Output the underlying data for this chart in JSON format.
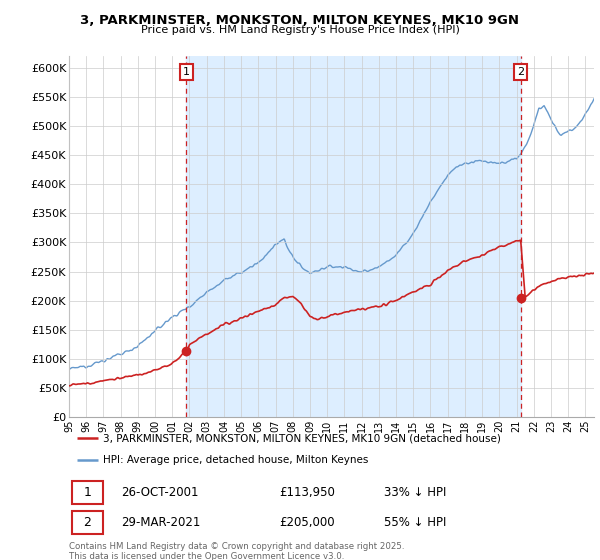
{
  "title_line1": "3, PARKMINSTER, MONKSTON, MILTON KEYNES, MK10 9GN",
  "title_line2": "Price paid vs. HM Land Registry's House Price Index (HPI)",
  "ylim": [
    0,
    620000
  ],
  "yticks": [
    0,
    50000,
    100000,
    150000,
    200000,
    250000,
    300000,
    350000,
    400000,
    450000,
    500000,
    550000,
    600000
  ],
  "ytick_labels": [
    "£0",
    "£50K",
    "£100K",
    "£150K",
    "£200K",
    "£250K",
    "£300K",
    "£350K",
    "£400K",
    "£450K",
    "£500K",
    "£550K",
    "£600K"
  ],
  "sale1_date": 2001.82,
  "sale1_price": 113950,
  "sale1_label": "1",
  "sale2_date": 2021.24,
  "sale2_price": 205000,
  "sale2_label": "2",
  "property_color": "#cc2222",
  "hpi_color": "#6699cc",
  "hpi_fill_color": "#ddeeff",
  "legend_property": "3, PARKMINSTER, MONKSTON, MILTON KEYNES, MK10 9GN (detached house)",
  "legend_hpi": "HPI: Average price, detached house, Milton Keynes",
  "footnote": "Contains HM Land Registry data © Crown copyright and database right 2025.\nThis data is licensed under the Open Government Licence v3.0.",
  "xmin": 1995.0,
  "xmax": 2025.5,
  "background_color": "#ffffff",
  "grid_color": "#cccccc"
}
